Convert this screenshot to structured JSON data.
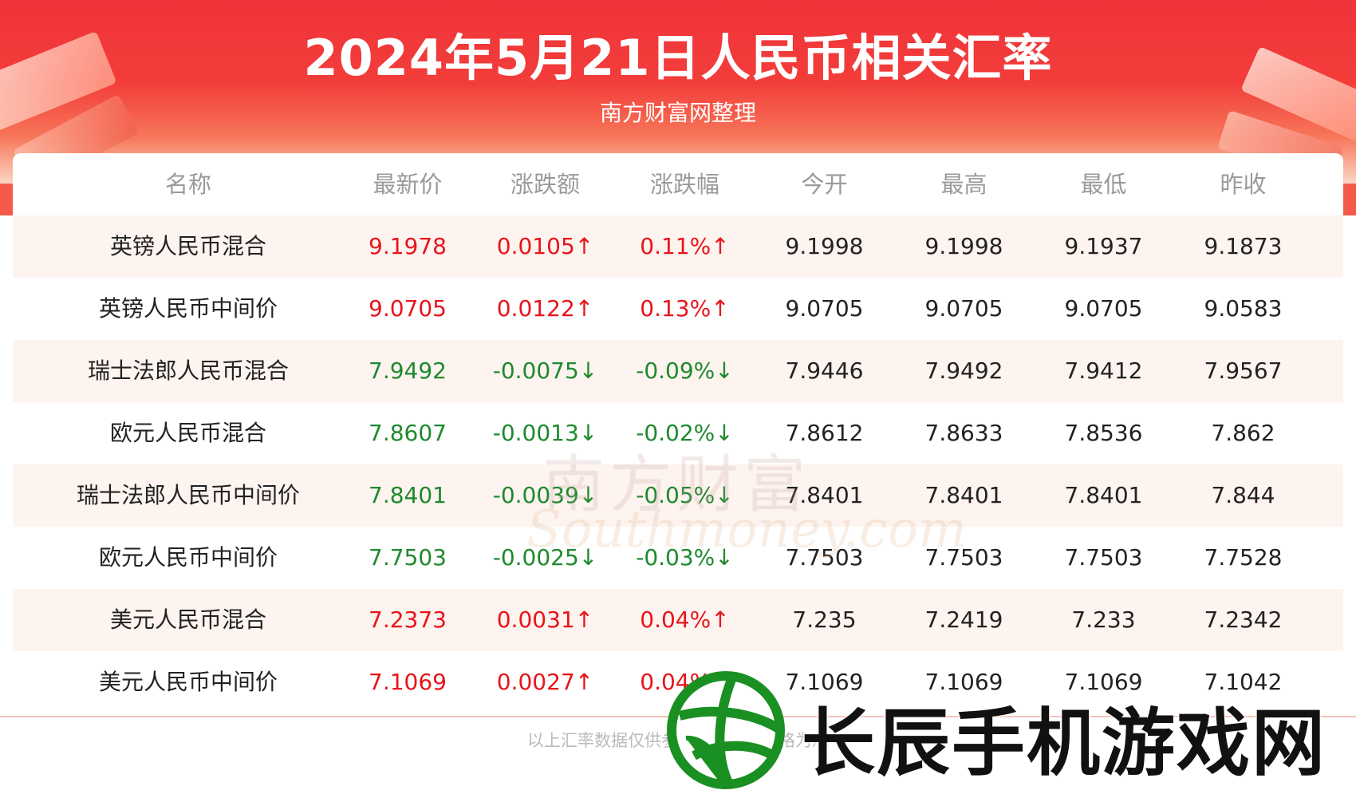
{
  "header": {
    "title": "2024年5月21日人民币相关汇率",
    "subtitle": "南方财富网整理"
  },
  "table": {
    "columns": [
      "名称",
      "最新价",
      "涨跌额",
      "涨跌幅",
      "今开",
      "最高",
      "最低",
      "昨收"
    ],
    "rows": [
      {
        "name": "英镑人民币混合",
        "latest": "9.1978",
        "change": "0.0105↑",
        "pct": "0.11%↑",
        "open": "9.1998",
        "high": "9.1998",
        "low": "9.1937",
        "prev": "9.1873",
        "dir": "up"
      },
      {
        "name": "英镑人民币中间价",
        "latest": "9.0705",
        "change": "0.0122↑",
        "pct": "0.13%↑",
        "open": "9.0705",
        "high": "9.0705",
        "low": "9.0705",
        "prev": "9.0583",
        "dir": "up"
      },
      {
        "name": "瑞士法郎人民币混合",
        "latest": "7.9492",
        "change": "-0.0075↓",
        "pct": "-0.09%↓",
        "open": "7.9446",
        "high": "7.9492",
        "low": "7.9412",
        "prev": "7.9567",
        "dir": "down"
      },
      {
        "name": "欧元人民币混合",
        "latest": "7.8607",
        "change": "-0.0013↓",
        "pct": "-0.02%↓",
        "open": "7.8612",
        "high": "7.8633",
        "low": "7.8536",
        "prev": "7.862",
        "dir": "down"
      },
      {
        "name": "瑞士法郎人民币中间价",
        "latest": "7.8401",
        "change": "-0.0039↓",
        "pct": "-0.05%↓",
        "open": "7.8401",
        "high": "7.8401",
        "low": "7.8401",
        "prev": "7.844",
        "dir": "down"
      },
      {
        "name": "欧元人民币中间价",
        "latest": "7.7503",
        "change": "-0.0025↓",
        "pct": "-0.03%↓",
        "open": "7.7503",
        "high": "7.7503",
        "low": "7.7503",
        "prev": "7.7528",
        "dir": "down"
      },
      {
        "name": "美元人民币混合",
        "latest": "7.2373",
        "change": "0.0031↑",
        "pct": "0.04%↑",
        "open": "7.235",
        "high": "7.2419",
        "low": "7.233",
        "prev": "7.2342",
        "dir": "up"
      },
      {
        "name": "美元人民币中间价",
        "latest": "7.1069",
        "change": "0.0027↑",
        "pct": "0.04%↑",
        "open": "7.1069",
        "high": "7.1069",
        "low": "7.1069",
        "prev": "7.1042",
        "dir": "up"
      }
    ]
  },
  "footer": {
    "text": "以上汇率数据仅供参考，以实际价格为准"
  },
  "watermark": {
    "cn": "南方财富",
    "en": "Southmoney.com"
  },
  "brand": {
    "text": "长辰手机游戏网",
    "logo_icon": "basketball-logo-icon"
  },
  "colors": {
    "up": "#e8141b",
    "down": "#1e8a2e",
    "header": "#f0333a"
  }
}
